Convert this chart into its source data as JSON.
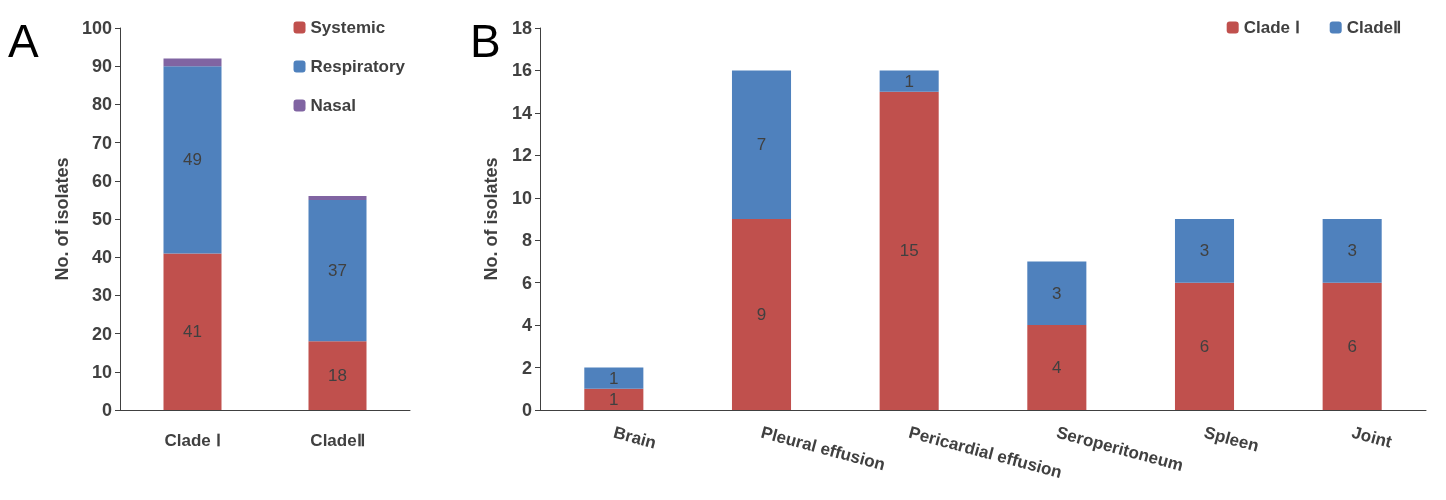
{
  "chart_data": [
    {
      "type": "bar",
      "stacked": true,
      "annotations": [
        "A"
      ],
      "ylabel": "No. of isolates",
      "categories": [
        "Clade Ⅰ",
        "CladeⅡ"
      ],
      "ylim": [
        0,
        100
      ],
      "yticks": [
        0,
        10,
        20,
        30,
        40,
        50,
        60,
        70,
        80,
        90,
        100
      ],
      "grid": false,
      "legend": "top right",
      "series": [
        {
          "name": "Systemic",
          "color": "#c0504d",
          "values": [
            41,
            18
          ],
          "value_labels": [
            "41",
            "18"
          ]
        },
        {
          "name": "Respiratory",
          "color": "#4f81bd",
          "values": [
            49,
            37
          ],
          "value_labels": [
            "49",
            "37"
          ]
        },
        {
          "name": "Nasal",
          "color": "#8064a2",
          "values": [
            2,
            1
          ]
        }
      ]
    },
    {
      "type": "bar",
      "stacked": true,
      "annotations": [
        "B"
      ],
      "ylabel": "No. of isolates",
      "categories": [
        "Brain",
        "Pleural effusion",
        "Pericardial effusion",
        "Seroperitoneum",
        "Spleen",
        "Joint"
      ],
      "ylim": [
        0,
        18
      ],
      "yticks": [
        0,
        2,
        4,
        6,
        8,
        10,
        12,
        14,
        16,
        18
      ],
      "grid": false,
      "legend": "top right",
      "data_labels": true,
      "series": [
        {
          "name": "Clade Ⅰ",
          "color": "#c0504d",
          "values": [
            1,
            9,
            15,
            4,
            6,
            6
          ]
        },
        {
          "name": "CladeⅡ",
          "color": "#4f81bd",
          "values": [
            1,
            7,
            1,
            3,
            3,
            3
          ]
        }
      ]
    }
  ]
}
